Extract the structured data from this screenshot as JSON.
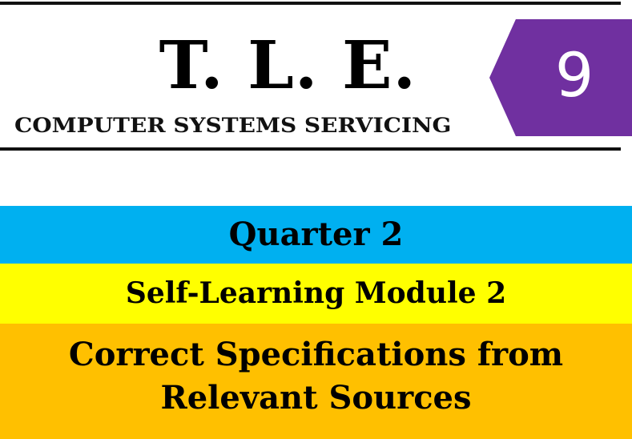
{
  "header": {
    "title": "T. L. E.",
    "subtitle": "COMPUTER SYSTEMS SERVICING",
    "grade": "9"
  },
  "bands": {
    "quarter": "Quarter 2",
    "module": "Self-Learning Module 2",
    "topic_line_1": "Correct Specifications from",
    "topic_line_2": "Relevant Sources"
  },
  "colors": {
    "grade_badge": "#7030a0",
    "quarter_band": "#00b0f0",
    "module_band": "#ffff00",
    "topic_band": "#ffc000",
    "rules": "#111111"
  }
}
